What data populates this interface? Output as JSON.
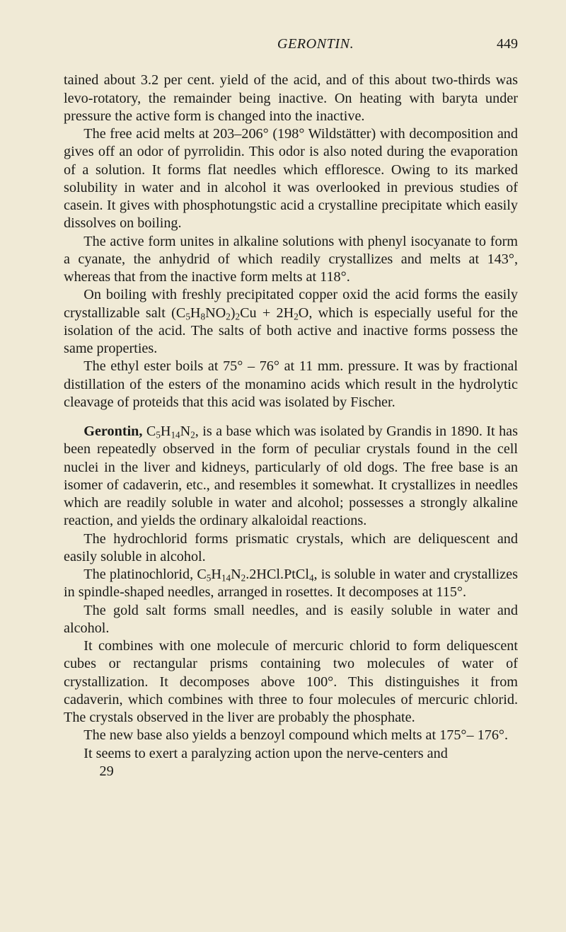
{
  "header": {
    "running_title": "GERONTIN.",
    "page_number": "449"
  },
  "p1": "tained about 3.2 per cent. yield of the acid, and of this about two-thirds was levo-rotatory, the remainder being inactive. On heating with baryta under pressure the active form is changed into the inactive.",
  "p2": "The free acid melts at 203–206° (198° Wildstätter) with decomposition and gives off an odor of pyrrolidin. This odor is also noted during the evaporation of a solution. It forms flat needles which effloresce. Owing to its marked solubility in water and in alcohol it was overlooked in previous studies of casein. It gives with phosphotungstic acid a crystalline precipitate which easily dissolves on boiling.",
  "p3": "The active form unites in alkaline solutions with phenyl isocyanate to form a cyanate, the anhydrid of which readily crystallizes and melts at 143°, whereas that from the inactive form melts at 118°.",
  "p4a": "On boiling with freshly precipitated copper oxid the acid forms the easily crystallizable salt (C",
  "p4b": "H",
  "p4c": "NO",
  "p4d": ")",
  "p4e": "Cu + 2H",
  "p4f": "O, which is especially useful for the isolation of the acid. The salts of both active and inactive forms possess the same properties.",
  "p5": "The ethyl ester boils at 75° – 76° at 11 mm. pressure. It was by fractional distillation of the esters of the monamino acids which result in the hydrolytic cleavage of proteids that this acid was isolated by Fischer.",
  "g_label": "Gerontin,",
  "g_f1": " C",
  "g_f2": "H",
  "g_f3": "N",
  "p6b": ", is a base which was isolated by Grandis in 1890. It has been repeatedly observed in the form of peculiar crystals found in the cell nuclei in the liver and kidneys, particularly of old dogs. The free base is an isomer of cadaverin, etc., and resembles it somewhat. It crystallizes in needles which are readily soluble in water and alcohol; possesses a strongly alkaline reaction, and yields the ordinary alkaloidal reactions.",
  "p7": "The hydrochlorid forms prismatic crystals, which are deliquescent and easily soluble in alcohol.",
  "p8a": "The platinochlorid, C",
  "p8b": "H",
  "p8c": "N",
  "p8d": ".2HCl.PtCl",
  "p8e": ", is soluble in water and crystallizes in spindle-shaped needles, arranged in rosettes. It decomposes at 115°.",
  "p9": "The gold salt forms small needles, and is easily soluble in water and alcohol.",
  "p10": "It combines with one molecule of mercuric chlorid to form deliquescent cubes or rectangular prisms containing two molecules of water of crystallization. It decomposes above 100°. This distinguishes it from cadaverin, which combines with three to four molecules of mercuric chlorid. The crystals observed in the liver are probably the phosphate.",
  "p11": "The new base also yields a benzoyl compound which melts at 175°– 176°.",
  "p12": "It seems to exert a paralyzing action upon the nerve-centers and",
  "sig": "29",
  "sub5": "5",
  "sub8": "8",
  "sub2": "2",
  "sub14": "14",
  "sub4": "4"
}
